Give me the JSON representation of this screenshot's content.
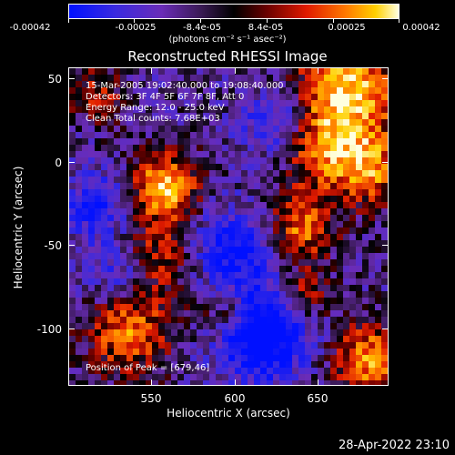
{
  "colorbar": {
    "tick_labels": [
      "-0.00042",
      "-0.00025",
      "-8.4e-05",
      "8.4e-05",
      "0.00025",
      "0.00042"
    ],
    "tick_values": [
      -0.00042,
      -0.00025,
      -8.4e-05,
      8.4e-05,
      0.00025,
      0.00042
    ],
    "range": [
      -0.00042,
      0.00042
    ],
    "units_label": "(photons cm⁻² s⁻¹ asec⁻²)",
    "colors": [
      "#0000ff",
      "#6a2cb8",
      "#000000",
      "#7a0000",
      "#ff2a00",
      "#ffb300",
      "#ffffff"
    ]
  },
  "plot": {
    "title": "Reconstructed RHESSI Image",
    "info_lines": [
      "15-Mar-2005 19:02:40.000 to 19:08:40.000",
      "Detectors: 3F 4F 5F 6F 7F 8F, Att 0",
      "Energy Range: 12.0 - 25.0 keV",
      "Clean    Total counts: 7.68E+03"
    ],
    "peak_label": "Position of Peak = [679,46]",
    "x_axis_label": "Heliocentric X (arcsec)",
    "y_axis_label": "Heliocentric Y (arcsec)",
    "x_ticks": [
      "550",
      "600",
      "650"
    ],
    "y_ticks": [
      "50",
      "0",
      "-50",
      "-100"
    ],
    "timestamp": "28-Apr-2022 23:10"
  },
  "chart_data": {
    "type": "heatmap",
    "title": "Reconstructed RHESSI Image",
    "xlabel": "Heliocentric X (arcsec)",
    "ylabel": "Heliocentric Y (arcsec)",
    "xlim": [
      501,
      691
    ],
    "ylim": [
      -137,
      57
    ],
    "x_ticks": [
      550,
      600,
      650
    ],
    "y_ticks": [
      -100,
      -50,
      0,
      50
    ],
    "value_range": [
      -0.00042,
      0.00042
    ],
    "peak_position": [
      679,
      46
    ],
    "colorbar": "blue-purple-black-red-orange-yellow-white"
  }
}
